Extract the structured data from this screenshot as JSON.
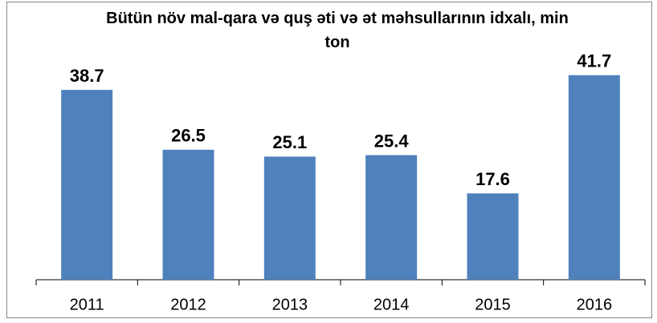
{
  "chart_data": {
    "type": "bar",
    "title": "Bütün növ mal-qara və quş əti və ət məhsullarının idxalı, min ton",
    "categories": [
      "2011",
      "2012",
      "2013",
      "2014",
      "2015",
      "2016"
    ],
    "values": [
      38.7,
      26.5,
      25.1,
      25.4,
      17.6,
      41.7
    ],
    "color": "#4f81bd",
    "ylim": [
      0,
      50
    ]
  }
}
